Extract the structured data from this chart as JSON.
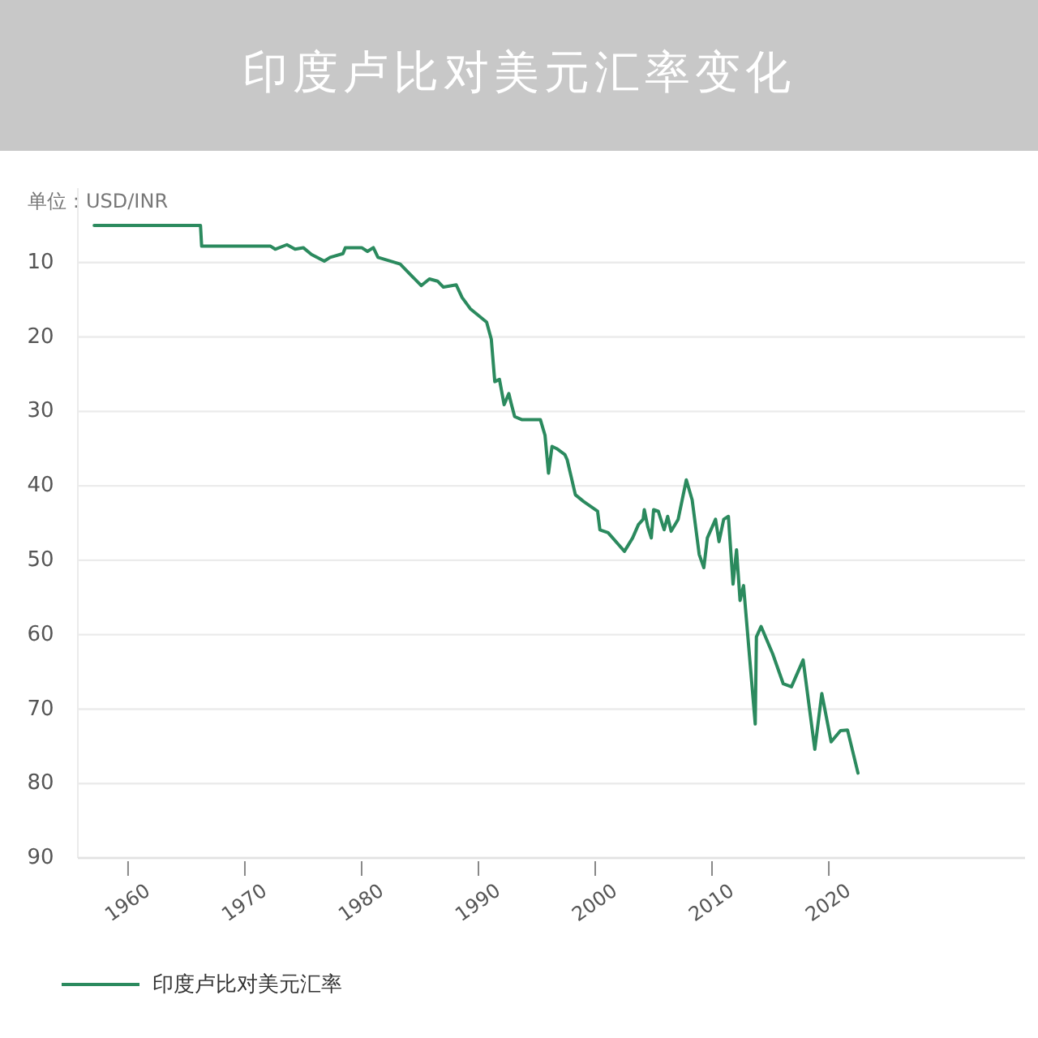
{
  "chart_data": {
    "type": "line",
    "title": "印度卢比对美元汇率变化",
    "ylabel": "单位：USD/INR",
    "x": [
      1957.1,
      1966.2,
      1966.3,
      1972.2,
      1972.6,
      1973.6,
      1974.3,
      1975.0,
      1975.7,
      1976.8,
      1977.3,
      1978.4,
      1978.6,
      1979.4,
      1980.0,
      1980.5,
      1981.0,
      1981.4,
      1983.3,
      1985.1,
      1985.8,
      1986.5,
      1987.0,
      1988.1,
      1988.6,
      1989.3,
      1990.7,
      1991.1,
      1991.4,
      1991.8,
      1992.2,
      1992.6,
      1992.8,
      1993.1,
      1993.7,
      1995.3,
      1995.7,
      1996.0,
      1996.3,
      1996.7,
      1997.4,
      1997.6,
      1998.3,
      1999.0,
      2000.2,
      2000.4,
      2001.1,
      2002.5,
      2003.2,
      2003.7,
      2004.1,
      2004.2,
      2004.5,
      2004.8,
      2005.0,
      2005.4,
      2005.9,
      2006.2,
      2006.5,
      2007.1,
      2007.8,
      2008.3,
      2008.9,
      2009.3,
      2009.6,
      2010.3,
      2010.6,
      2011.0,
      2011.4,
      2011.8,
      2012.1,
      2012.4,
      2012.7,
      2013.7,
      2013.8,
      2014.2,
      2015.2,
      2016.1,
      2016.8,
      2017.8,
      2018.8,
      2019.4,
      2020.2,
      2021.0,
      2021.6,
      2022.5
    ],
    "series": [
      {
        "name": "印度卢比对美元汇率",
        "color": "#2b8a5e",
        "values": [
          5.0,
          5.0,
          7.8,
          7.8,
          8.2,
          7.6,
          8.2,
          8.0,
          8.9,
          9.8,
          9.3,
          8.8,
          8.0,
          8.0,
          8.0,
          8.5,
          8.0,
          9.3,
          10.2,
          13.1,
          12.2,
          12.5,
          13.3,
          13.0,
          14.7,
          16.2,
          18.0,
          20.3,
          26.0,
          25.7,
          29.1,
          27.6,
          28.9,
          30.7,
          31.1,
          31.1,
          33.2,
          38.3,
          34.7,
          35.0,
          35.8,
          36.5,
          41.2,
          42.1,
          43.4,
          45.9,
          46.3,
          48.8,
          47.0,
          45.2,
          44.5,
          43.2,
          45.5,
          47.0,
          43.2,
          43.4,
          45.9,
          44.1,
          46.1,
          44.5,
          39.2,
          41.9,
          49.2,
          51.0,
          47.0,
          44.5,
          47.5,
          44.5,
          44.1,
          53.2,
          48.6,
          55.4,
          53.4,
          72.0,
          60.3,
          58.9,
          62.6,
          66.6,
          67.0,
          63.4,
          75.4,
          67.9,
          74.4,
          72.9,
          72.8,
          78.6
        ]
      }
    ],
    "xlim": [
      1955.7,
      2036.8
    ],
    "xticks": [
      1960,
      1970,
      1980,
      1990,
      2000,
      2010,
      2020
    ],
    "ylim": [
      90,
      0
    ],
    "yticks": [
      10,
      20,
      30,
      40,
      50,
      60,
      70,
      80,
      90
    ],
    "grid": "y",
    "legend": "bottom left"
  }
}
